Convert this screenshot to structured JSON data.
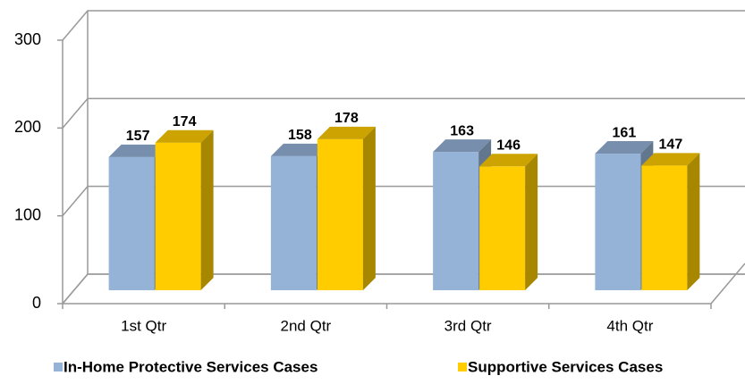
{
  "chart_data": {
    "type": "bar3d",
    "categories": [
      "1st Qtr",
      "2nd Qtr",
      "3rd Qtr",
      "4th Qtr"
    ],
    "series": [
      {
        "name": "In-Home Protective Services Cases",
        "color": "#95b3d7",
        "values": [
          157,
          158,
          163,
          161
        ]
      },
      {
        "name": "Supportive Services Cases",
        "color": "#ffcc00",
        "values": [
          174,
          178,
          146,
          147
        ]
      }
    ],
    "ylim": [
      0,
      300
    ],
    "yticks": [
      0,
      100,
      200,
      300
    ],
    "grid": true,
    "legend": "bottom"
  }
}
